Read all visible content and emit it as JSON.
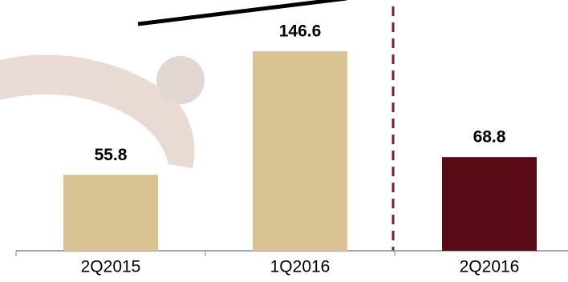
{
  "chart_data": {
    "type": "bar",
    "categories": [
      "2Q2015",
      "1Q2016",
      "2Q2016"
    ],
    "values": [
      55.8,
      146.6,
      68.8
    ],
    "colors": [
      "#d9c393",
      "#d9c393",
      "#5a0a14"
    ]
  }
}
